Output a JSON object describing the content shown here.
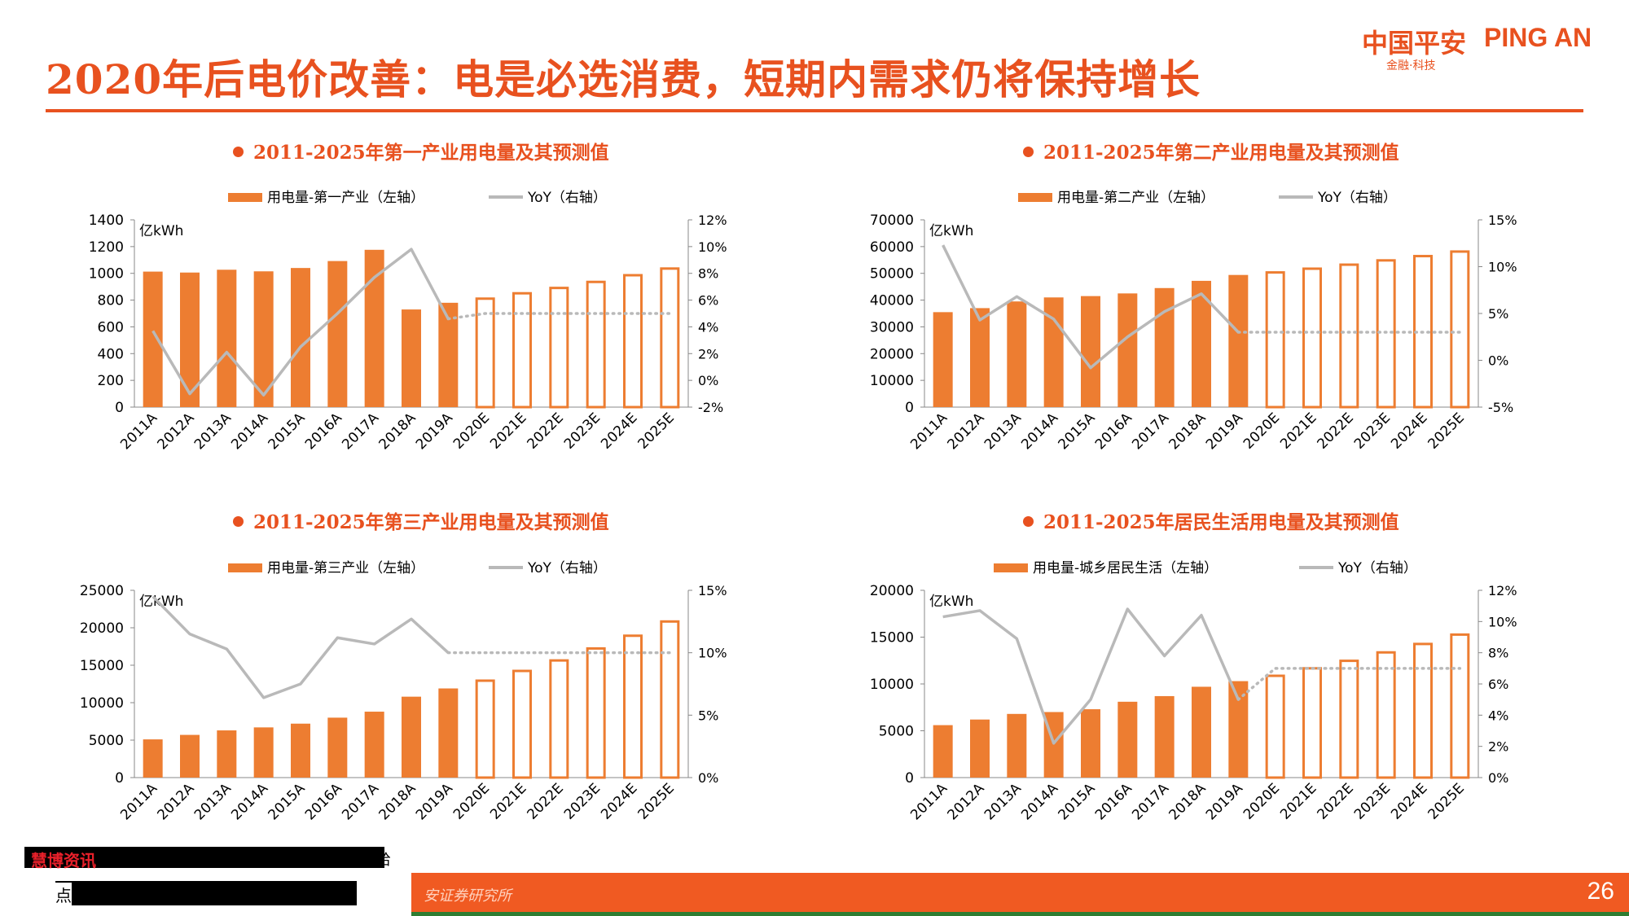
{
  "page": {
    "title": "2020年后电价改善：电是必选消费，短期内需求仍将保持增长",
    "logo_cn": "中国平安",
    "logo_en": "PING AN",
    "logo_sub": "金融·科技",
    "source": "安证券研究所",
    "page_number": "26",
    "watermark_tag": "慧博资讯",
    "watermark_tail": "给",
    "watermark_lead": "点",
    "accent_color": "#e8511f",
    "bar_color": "#ed7d31",
    "line_color": "#b9b9b9"
  },
  "chart_data": [
    {
      "type": "bar",
      "title": "2011-2025年第一产业用电量及其预测值",
      "unit": "亿kWh",
      "categories": [
        "2011A",
        "2012A",
        "2013A",
        "2014A",
        "2015A",
        "2016A",
        "2017A",
        "2018A",
        "2019A",
        "2020E",
        "2021E",
        "2022E",
        "2023E",
        "2024E",
        "2025E"
      ],
      "forecast_start_index": 9,
      "series": [
        {
          "name": "用电量-第一产业（左轴）",
          "axis": "left",
          "values": [
            1013,
            1006,
            1027,
            1015,
            1040,
            1092,
            1176,
            730,
            780,
            820,
            860,
            900,
            945,
            995,
            1045
          ]
        },
        {
          "name": "YoY（右轴）",
          "axis": "right",
          "values": [
            3.7,
            -1.0,
            2.1,
            -1.1,
            2.5,
            5.0,
            7.7,
            9.8,
            4.6,
            5.0,
            5.0,
            5.0,
            5.0,
            5.0,
            5.0
          ]
        }
      ],
      "y_left": {
        "min": 0,
        "max": 1400,
        "ticks": [
          "0",
          "200",
          "400",
          "600",
          "800",
          "1000",
          "1200",
          "1400"
        ]
      },
      "y_right": {
        "min": -2,
        "max": 12,
        "ticks": [
          "-2%",
          "0%",
          "2%",
          "4%",
          "6%",
          "8%",
          "10%",
          "12%"
        ]
      }
    },
    {
      "type": "bar",
      "title": "2011-2025年第二产业用电量及其预测值",
      "unit": "亿kWh",
      "categories": [
        "2011A",
        "2012A",
        "2013A",
        "2014A",
        "2015A",
        "2016A",
        "2017A",
        "2018A",
        "2019A",
        "2020E",
        "2021E",
        "2022E",
        "2023E",
        "2024E",
        "2025E"
      ],
      "forecast_start_index": 9,
      "series": [
        {
          "name": "用电量-第二产业（左轴）",
          "axis": "left",
          "values": [
            35500,
            37000,
            39500,
            41000,
            41500,
            42500,
            44500,
            47200,
            49400,
            50800,
            52200,
            53700,
            55300,
            56900,
            58600
          ]
        },
        {
          "name": "YoY（右轴）",
          "axis": "right",
          "values": [
            12.3,
            4.3,
            6.8,
            4.4,
            -0.8,
            2.5,
            5.2,
            7.1,
            3.0,
            3.0,
            3.0,
            3.0,
            3.0,
            3.0,
            3.0
          ]
        }
      ],
      "y_left": {
        "min": 0,
        "max": 70000,
        "ticks": [
          "0",
          "10000",
          "20000",
          "30000",
          "40000",
          "50000",
          "60000",
          "70000"
        ]
      },
      "y_right": {
        "min": -5,
        "max": 15,
        "ticks": [
          "-5%",
          "0%",
          "5%",
          "10%",
          "15%"
        ]
      }
    },
    {
      "type": "bar",
      "title": "2011-2025年第三产业用电量及其预测值",
      "unit": "亿kWh",
      "categories": [
        "2011A",
        "2012A",
        "2013A",
        "2014A",
        "2015A",
        "2016A",
        "2017A",
        "2018A",
        "2019A",
        "2020E",
        "2021E",
        "2022E",
        "2023E",
        "2024E",
        "2025E"
      ],
      "forecast_start_index": 9,
      "series": [
        {
          "name": "用电量-第三产业（左轴）",
          "axis": "left",
          "values": [
            5100,
            5700,
            6300,
            6700,
            7200,
            8000,
            8800,
            10800,
            11900,
            13100,
            14400,
            15800,
            17400,
            19100,
            21000
          ]
        },
        {
          "name": "YoY（右轴）",
          "axis": "right",
          "values": [
            14.5,
            11.5,
            10.3,
            6.4,
            7.5,
            11.2,
            10.7,
            12.7,
            10.0,
            10.0,
            10.0,
            10.0,
            10.0,
            10.0,
            10.0
          ]
        }
      ],
      "y_left": {
        "min": 0,
        "max": 25000,
        "ticks": [
          "0",
          "5000",
          "10000",
          "15000",
          "20000",
          "25000"
        ]
      },
      "y_right": {
        "min": 0,
        "max": 15,
        "ticks": [
          "0%",
          "5%",
          "10%",
          "15%"
        ]
      }
    },
    {
      "type": "bar",
      "title": "2011-2025年居民生活用电量及其预测值",
      "unit": "亿kWh",
      "categories": [
        "2011A",
        "2012A",
        "2013A",
        "2014A",
        "2015A",
        "2016A",
        "2017A",
        "2018A",
        "2019A",
        "2020E",
        "2021E",
        "2022E",
        "2023E",
        "2024E",
        "2025E"
      ],
      "forecast_start_index": 9,
      "series": [
        {
          "name": "用电量-城乡居民生活（左轴）",
          "axis": "left",
          "values": [
            5600,
            6200,
            6800,
            7000,
            7300,
            8100,
            8700,
            9700,
            10300,
            11000,
            11800,
            12600,
            13500,
            14400,
            15400
          ]
        },
        {
          "name": "YoY（右轴）",
          "axis": "right",
          "values": [
            10.3,
            10.7,
            8.9,
            2.2,
            5.0,
            10.8,
            7.8,
            10.4,
            5.0,
            7.0,
            7.0,
            7.0,
            7.0,
            7.0,
            7.0
          ]
        }
      ],
      "y_left": {
        "min": 0,
        "max": 20000,
        "ticks": [
          "0",
          "5000",
          "10000",
          "15000",
          "20000"
        ]
      },
      "y_right": {
        "min": 0,
        "max": 12,
        "ticks": [
          "0%",
          "2%",
          "4%",
          "6%",
          "8%",
          "10%",
          "12%"
        ]
      }
    }
  ]
}
